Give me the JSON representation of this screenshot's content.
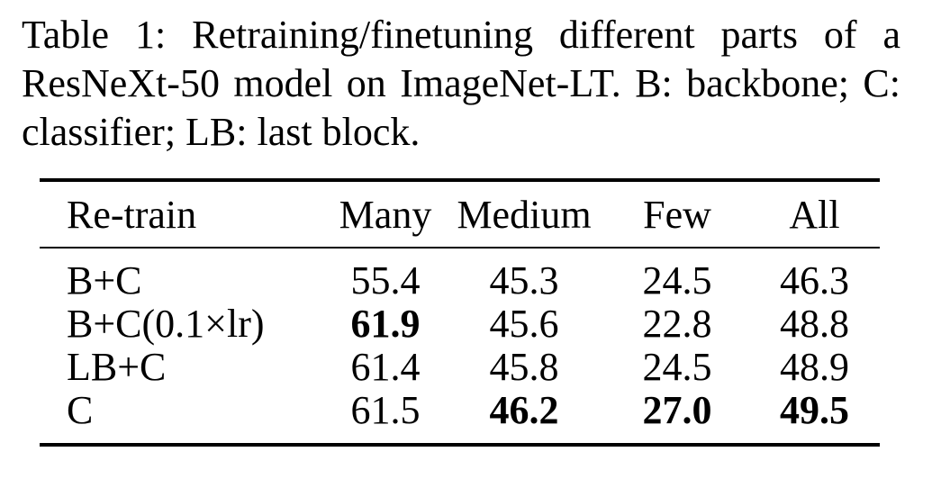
{
  "caption": "Table 1: Retraining/finetuning different parts of a ResNeXt-50 model on ImageNet-LT. B: back­bone; C: classifier; LB: last block.",
  "table": {
    "headers": [
      "Re-train",
      "Many",
      "Medium",
      "Few",
      "All"
    ],
    "rows": [
      {
        "name": "B+C",
        "values": [
          "55.4",
          "45.3",
          "24.5",
          "46.3"
        ],
        "bold": [
          false,
          false,
          false,
          false
        ]
      },
      {
        "name": "B+C(0.1×lr)",
        "values": [
          "61.9",
          "45.6",
          "22.8",
          "48.8"
        ],
        "bold": [
          true,
          false,
          false,
          false
        ]
      },
      {
        "name": "LB+C",
        "values": [
          "61.4",
          "45.8",
          "24.5",
          "48.9"
        ],
        "bold": [
          false,
          false,
          false,
          false
        ]
      },
      {
        "name": "C",
        "values": [
          "61.5",
          "46.2",
          "27.0",
          "49.5"
        ],
        "bold": [
          false,
          true,
          true,
          true
        ]
      }
    ]
  }
}
